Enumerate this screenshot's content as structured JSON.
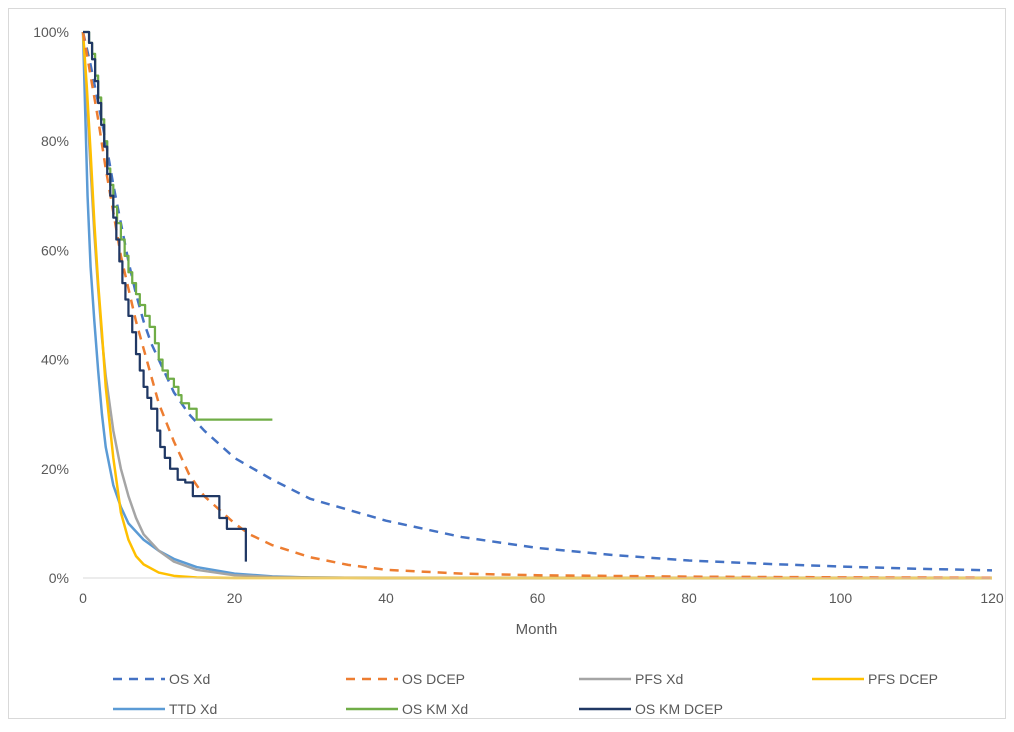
{
  "chart_data": {
    "type": "line",
    "title": "",
    "xlabel": "Month",
    "ylabel": "",
    "xlim": [
      0,
      120
    ],
    "ylim": [
      0,
      100
    ],
    "x_ticks": [
      0,
      20,
      40,
      60,
      80,
      100,
      120
    ],
    "y_ticks": [
      0,
      20,
      40,
      60,
      80,
      100
    ],
    "y_tick_labels": [
      "0%",
      "20%",
      "40%",
      "60%",
      "80%",
      "100%"
    ],
    "grid": false,
    "legend_position": "bottom",
    "series": [
      {
        "name": "OS Xd",
        "color": "#4472C4",
        "style": "dashed",
        "points": [
          [
            0,
            100
          ],
          [
            1,
            94
          ],
          [
            2,
            87
          ],
          [
            3,
            80
          ],
          [
            4,
            72
          ],
          [
            5,
            65
          ],
          [
            6,
            58
          ],
          [
            7,
            52
          ],
          [
            8,
            47
          ],
          [
            9,
            43
          ],
          [
            10,
            40
          ],
          [
            12,
            34
          ],
          [
            14,
            30
          ],
          [
            16,
            27
          ],
          [
            20,
            22
          ],
          [
            25,
            18
          ],
          [
            30,
            14.5
          ],
          [
            35,
            12.5
          ],
          [
            40,
            10.5
          ],
          [
            50,
            7.5
          ],
          [
            60,
            5.5
          ],
          [
            70,
            4.2
          ],
          [
            80,
            3.2
          ],
          [
            90,
            2.6
          ],
          [
            100,
            2.1
          ],
          [
            110,
            1.7
          ],
          [
            120,
            1.4
          ]
        ]
      },
      {
        "name": "OS DCEP",
        "color": "#ED7D31",
        "style": "dashed",
        "points": [
          [
            0,
            100
          ],
          [
            1,
            92
          ],
          [
            2,
            84
          ],
          [
            3,
            75
          ],
          [
            4,
            67
          ],
          [
            5,
            59
          ],
          [
            6,
            53
          ],
          [
            7,
            47
          ],
          [
            8,
            42
          ],
          [
            9,
            37
          ],
          [
            10,
            32
          ],
          [
            12,
            25
          ],
          [
            14,
            19
          ],
          [
            16,
            15
          ],
          [
            18,
            12.5
          ],
          [
            20,
            10
          ],
          [
            22,
            8
          ],
          [
            25,
            6
          ],
          [
            30,
            3.8
          ],
          [
            35,
            2.4
          ],
          [
            40,
            1.5
          ],
          [
            50,
            0.8
          ],
          [
            60,
            0.5
          ],
          [
            80,
            0.25
          ],
          [
            100,
            0.12
          ],
          [
            120,
            0.05
          ]
        ]
      },
      {
        "name": "PFS Xd",
        "color": "#A5A5A5",
        "style": "solid",
        "points": [
          [
            0,
            100
          ],
          [
            0.5,
            88
          ],
          [
            1,
            75
          ],
          [
            1.5,
            63
          ],
          [
            2,
            53
          ],
          [
            2.5,
            44
          ],
          [
            3,
            37
          ],
          [
            4,
            27
          ],
          [
            5,
            20
          ],
          [
            6,
            15
          ],
          [
            7,
            11
          ],
          [
            8,
            8
          ],
          [
            10,
            5
          ],
          [
            12,
            3
          ],
          [
            15,
            1.5
          ],
          [
            20,
            0.5
          ],
          [
            25,
            0.2
          ],
          [
            30,
            0.1
          ],
          [
            40,
            0
          ],
          [
            120,
            0
          ]
        ]
      },
      {
        "name": "PFS DCEP",
        "color": "#FFC000",
        "style": "solid",
        "points": [
          [
            0,
            100
          ],
          [
            0.5,
            90
          ],
          [
            1,
            78
          ],
          [
            1.5,
            65
          ],
          [
            2,
            54
          ],
          [
            2.5,
            45
          ],
          [
            3,
            35
          ],
          [
            4,
            22
          ],
          [
            5,
            12
          ],
          [
            6,
            7
          ],
          [
            7,
            4
          ],
          [
            8,
            2.5
          ],
          [
            10,
            1
          ],
          [
            12,
            0.4
          ],
          [
            15,
            0.1
          ],
          [
            20,
            0
          ],
          [
            120,
            0
          ]
        ]
      },
      {
        "name": "TTD Xd",
        "color": "#5B9BD5",
        "style": "solid",
        "points": [
          [
            0,
            100
          ],
          [
            0.3,
            85
          ],
          [
            0.6,
            70
          ],
          [
            1,
            57
          ],
          [
            1.5,
            47
          ],
          [
            2,
            38
          ],
          [
            2.5,
            30
          ],
          [
            3,
            24
          ],
          [
            4,
            17
          ],
          [
            5,
            13
          ],
          [
            6,
            10
          ],
          [
            8,
            7
          ],
          [
            10,
            5
          ],
          [
            12,
            3.5
          ],
          [
            15,
            2
          ],
          [
            20,
            0.8
          ],
          [
            25,
            0.3
          ],
          [
            30,
            0.1
          ],
          [
            40,
            0
          ],
          [
            120,
            0
          ]
        ]
      },
      {
        "name": "OS KM Xd",
        "color": "#70AD47",
        "style": "step",
        "points": [
          [
            0,
            100
          ],
          [
            0.8,
            100
          ],
          [
            0.8,
            98
          ],
          [
            1.2,
            98
          ],
          [
            1.2,
            96
          ],
          [
            1.6,
            96
          ],
          [
            1.6,
            92
          ],
          [
            2,
            92
          ],
          [
            2,
            88
          ],
          [
            2.4,
            88
          ],
          [
            2.4,
            84
          ],
          [
            2.8,
            84
          ],
          [
            2.8,
            80
          ],
          [
            3.2,
            80
          ],
          [
            3.2,
            75
          ],
          [
            3.6,
            75
          ],
          [
            3.6,
            72
          ],
          [
            4,
            72
          ],
          [
            4,
            68
          ],
          [
            4.5,
            68
          ],
          [
            4.5,
            65
          ],
          [
            5,
            65
          ],
          [
            5,
            62
          ],
          [
            5.5,
            62
          ],
          [
            5.5,
            59
          ],
          [
            6,
            59
          ],
          [
            6,
            56
          ],
          [
            6.5,
            56
          ],
          [
            6.5,
            54
          ],
          [
            7,
            54
          ],
          [
            7,
            52
          ],
          [
            7.5,
            52
          ],
          [
            7.5,
            50
          ],
          [
            8.2,
            50
          ],
          [
            8.2,
            48
          ],
          [
            8.8,
            48
          ],
          [
            8.8,
            46
          ],
          [
            9.5,
            46
          ],
          [
            9.5,
            43
          ],
          [
            10,
            43
          ],
          [
            10,
            40
          ],
          [
            10.5,
            40
          ],
          [
            10.5,
            38
          ],
          [
            11.2,
            38
          ],
          [
            11.2,
            36.5
          ],
          [
            12,
            36.5
          ],
          [
            12,
            35
          ],
          [
            12.6,
            35
          ],
          [
            12.6,
            33.5
          ],
          [
            13,
            33.5
          ],
          [
            13,
            32
          ],
          [
            14,
            32
          ],
          [
            14,
            31
          ],
          [
            15,
            31
          ],
          [
            15,
            29
          ],
          [
            25,
            29
          ]
        ]
      },
      {
        "name": "OS KM DCEP",
        "color": "#203864",
        "style": "step",
        "points": [
          [
            0,
            100
          ],
          [
            0.8,
            100
          ],
          [
            0.8,
            98
          ],
          [
            1.2,
            98
          ],
          [
            1.2,
            95
          ],
          [
            1.6,
            95
          ],
          [
            1.6,
            91
          ],
          [
            2,
            91
          ],
          [
            2,
            87
          ],
          [
            2.4,
            87
          ],
          [
            2.4,
            83
          ],
          [
            2.8,
            83
          ],
          [
            2.8,
            79
          ],
          [
            3.2,
            79
          ],
          [
            3.2,
            74
          ],
          [
            3.6,
            74
          ],
          [
            3.6,
            70
          ],
          [
            4,
            70
          ],
          [
            4,
            66
          ],
          [
            4.4,
            66
          ],
          [
            4.4,
            62
          ],
          [
            4.8,
            62
          ],
          [
            4.8,
            58
          ],
          [
            5.2,
            58
          ],
          [
            5.2,
            54
          ],
          [
            5.6,
            54
          ],
          [
            5.6,
            51
          ],
          [
            6,
            51
          ],
          [
            6,
            48
          ],
          [
            6.5,
            48
          ],
          [
            6.5,
            45
          ],
          [
            7,
            45
          ],
          [
            7,
            41
          ],
          [
            7.5,
            41
          ],
          [
            7.5,
            38
          ],
          [
            8,
            38
          ],
          [
            8,
            35
          ],
          [
            8.5,
            35
          ],
          [
            8.5,
            33
          ],
          [
            9,
            33
          ],
          [
            9,
            31
          ],
          [
            9.8,
            31
          ],
          [
            9.8,
            27
          ],
          [
            10.2,
            27
          ],
          [
            10.2,
            24
          ],
          [
            10.8,
            24
          ],
          [
            10.8,
            22
          ],
          [
            11.5,
            22
          ],
          [
            11.5,
            20
          ],
          [
            12.5,
            20
          ],
          [
            12.5,
            18
          ],
          [
            13.5,
            18
          ],
          [
            13.5,
            17.5
          ],
          [
            14.5,
            17.5
          ],
          [
            14.5,
            15
          ],
          [
            18,
            15
          ],
          [
            18,
            11
          ],
          [
            19,
            11
          ],
          [
            19,
            9
          ],
          [
            21.5,
            9
          ],
          [
            21.5,
            3
          ]
        ]
      }
    ]
  }
}
